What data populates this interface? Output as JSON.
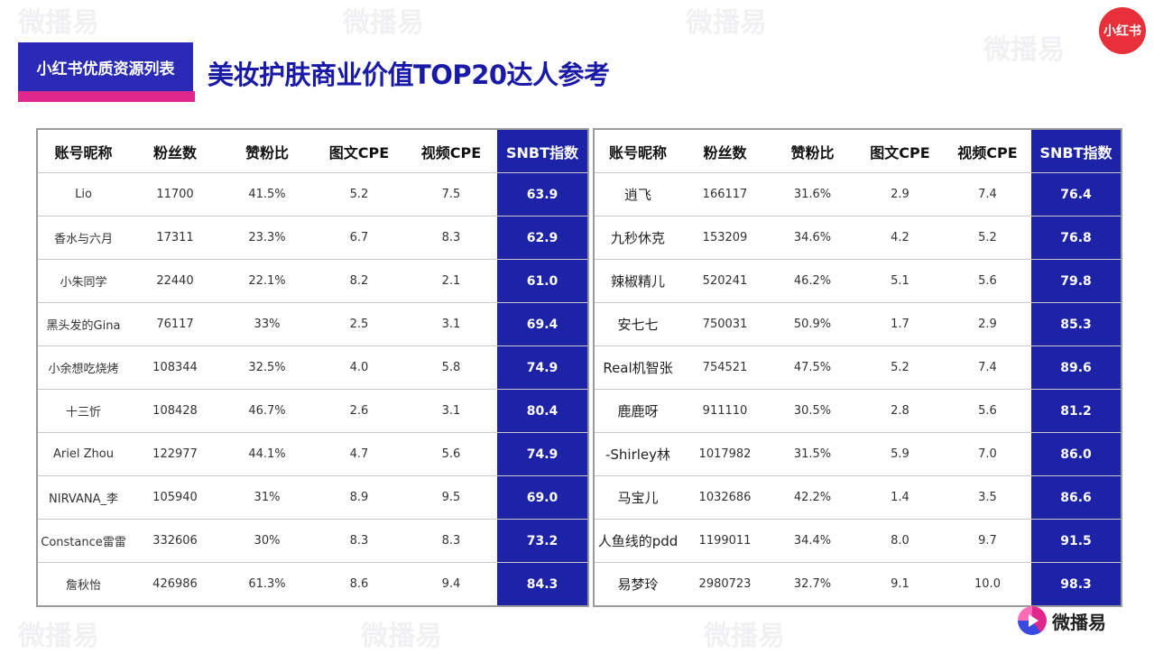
{
  "header": {
    "tag": "小红书优质资源列表",
    "title": "美妆护肤商业价值TOP20达人参考",
    "brand_logo": "小红书",
    "footer_logo": "微播易",
    "watermark": "微播易"
  },
  "colors": {
    "tag_bg": "#2a2ab6",
    "accent_bar": "#e0278e",
    "title": "#1a1aa8",
    "snbt_column": "#1d23a6",
    "xhs_logo": "#e8303a"
  },
  "columns": [
    "账号昵称",
    "粉丝数",
    "赞粉比",
    "图文CPE",
    "视频CPE",
    "SNBT指数"
  ],
  "left_table": [
    [
      "Lio",
      "11700",
      "41.5%",
      "5.2",
      "7.5",
      "63.9"
    ],
    [
      "香水与六月",
      "17311",
      "23.3%",
      "6.7",
      "8.3",
      "62.9"
    ],
    [
      "小朱同学",
      "22440",
      "22.1%",
      "8.2",
      "2.1",
      "61.0"
    ],
    [
      "黑头发的Gina",
      "76117",
      "33%",
      "2.5",
      "3.1",
      "69.4"
    ],
    [
      "小余想吃烧烤",
      "108344",
      "32.5%",
      "4.0",
      "5.8",
      "74.9"
    ],
    [
      "十三忻",
      "108428",
      "46.7%",
      "2.6",
      "3.1",
      "80.4"
    ],
    [
      "Ariel Zhou",
      "122977",
      "44.1%",
      "4.7",
      "5.6",
      "74.9"
    ],
    [
      "NIRVANA_李",
      "105940",
      "31%",
      "8.9",
      "9.5",
      "69.0"
    ],
    [
      "Constance雷雷",
      "332606",
      "30%",
      "8.3",
      "8.3",
      "73.2"
    ],
    [
      "詹秋怡",
      "426986",
      "61.3%",
      "8.6",
      "9.4",
      "84.3"
    ]
  ],
  "right_table": [
    [
      "逍飞",
      "166117",
      "31.6%",
      "2.9",
      "7.4",
      "76.4"
    ],
    [
      "九秒休克",
      "153209",
      "34.6%",
      "4.2",
      "5.2",
      "76.8"
    ],
    [
      "辣椒精儿",
      "520241",
      "46.2%",
      "5.1",
      "5.6",
      "79.8"
    ],
    [
      "安七七",
      "750031",
      "50.9%",
      "1.7",
      "2.9",
      "85.3"
    ],
    [
      "Real机智张",
      "754521",
      "47.5%",
      "5.2",
      "7.4",
      "89.6"
    ],
    [
      "鹿鹿呀",
      "911110",
      "30.5%",
      "2.8",
      "5.6",
      "81.2"
    ],
    [
      "-Shirley林",
      "1017982",
      "31.5%",
      "5.9",
      "7.0",
      "86.0"
    ],
    [
      "马宝儿",
      "1032686",
      "42.2%",
      "1.4",
      "3.5",
      "86.6"
    ],
    [
      "人鱼线的pdd",
      "1199011",
      "34.4%",
      "8.0",
      "9.7",
      "91.5"
    ],
    [
      "易梦玲",
      "2980723",
      "32.7%",
      "9.1",
      "10.0",
      "98.3"
    ]
  ]
}
